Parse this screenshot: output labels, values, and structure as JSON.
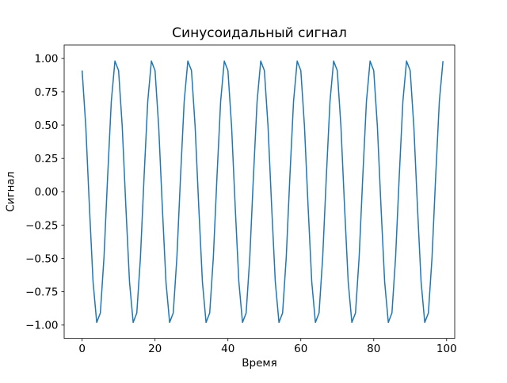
{
  "chart_data": {
    "type": "line",
    "title": "Синусоидальный сигнал",
    "xlabel": "Время",
    "ylabel": "Сигнал",
    "x_ticks": [
      0,
      20,
      40,
      60,
      80,
      100
    ],
    "x_tick_labels": [
      "0",
      "20",
      "40",
      "60",
      "80",
      "100"
    ],
    "y_ticks": [
      1.0,
      0.75,
      0.5,
      0.25,
      0.0,
      -0.25,
      -0.5,
      -0.75,
      -1.0
    ],
    "y_tick_labels": [
      "1.00",
      "0.75",
      "0.50",
      "0.25",
      "0.00",
      "−0.25",
      "−0.50",
      "−0.75",
      "−1.00"
    ],
    "xlim": [
      -4.93,
      102.22
    ],
    "ylim": [
      -1.1,
      1.1
    ],
    "grid": false,
    "legend": "none",
    "line_color": "#1f77b4",
    "line_width": 1.5,
    "series": [
      {
        "name": "Сигнал",
        "x_start": 0,
        "x_step": 1,
        "n_points": 100,
        "y": [
          0.909,
          0.491,
          -0.115,
          -0.677,
          -0.98,
          -0.909,
          -0.491,
          0.115,
          0.677,
          0.98,
          0.909,
          0.491,
          -0.115,
          -0.677,
          -0.98,
          -0.909,
          -0.491,
          0.115,
          0.677,
          0.98,
          0.909,
          0.491,
          -0.115,
          -0.677,
          -0.98,
          -0.909,
          -0.491,
          0.115,
          0.677,
          0.98,
          0.909,
          0.491,
          -0.115,
          -0.677,
          -0.98,
          -0.909,
          -0.491,
          0.115,
          0.677,
          0.98,
          0.909,
          0.491,
          -0.115,
          -0.677,
          -0.98,
          -0.909,
          -0.491,
          0.115,
          0.677,
          0.98,
          0.909,
          0.491,
          -0.115,
          -0.677,
          -0.98,
          -0.909,
          -0.491,
          0.115,
          0.677,
          0.98,
          0.909,
          0.491,
          -0.115,
          -0.677,
          -0.98,
          -0.909,
          -0.491,
          0.115,
          0.677,
          0.98,
          0.909,
          0.491,
          -0.115,
          -0.677,
          -0.98,
          -0.909,
          -0.491,
          0.115,
          0.677,
          0.98,
          0.909,
          0.491,
          -0.115,
          -0.677,
          -0.98,
          -0.909,
          -0.491,
          0.115,
          0.677,
          0.98,
          0.909,
          0.491,
          -0.115,
          -0.677,
          -0.98,
          -0.909,
          -0.491,
          0.115,
          0.677,
          0.98
        ]
      }
    ]
  }
}
